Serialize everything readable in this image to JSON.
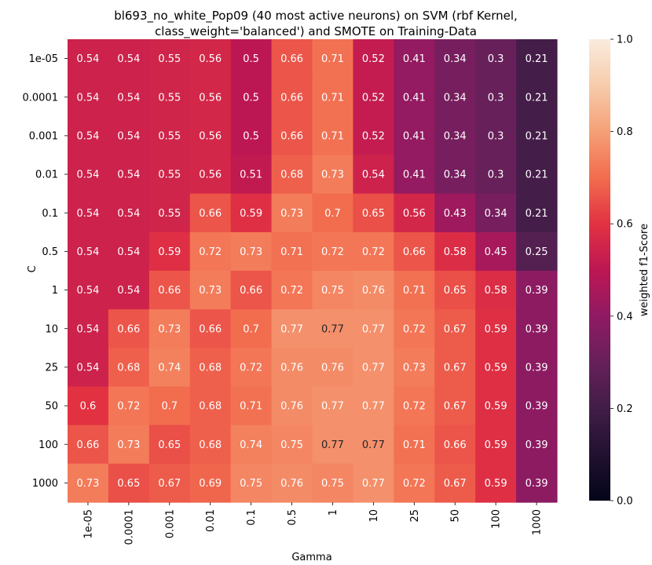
{
  "chart_data": {
    "type": "heatmap",
    "title_lines": [
      "bl693_no_white_Pop09 (40 most active neurons) on SVM (rbf Kernel,",
      "class_weight='balanced') and SMOTE on Training-Data"
    ],
    "xlabel": "Gamma",
    "ylabel": "C",
    "x_categories": [
      "1e-05",
      "0.0001",
      "0.001",
      "0.01",
      "0.1",
      "0.5",
      "1",
      "10",
      "25",
      "50",
      "100",
      "1000"
    ],
    "y_categories": [
      "1e-05",
      "0.0001",
      "0.001",
      "0.01",
      "0.1",
      "0.5",
      "1",
      "10",
      "25",
      "50",
      "100",
      "1000"
    ],
    "values": [
      [
        0.54,
        0.54,
        0.55,
        0.56,
        0.5,
        0.66,
        0.71,
        0.52,
        0.41,
        0.34,
        0.3,
        0.21
      ],
      [
        0.54,
        0.54,
        0.55,
        0.56,
        0.5,
        0.66,
        0.71,
        0.52,
        0.41,
        0.34,
        0.3,
        0.21
      ],
      [
        0.54,
        0.54,
        0.55,
        0.56,
        0.5,
        0.66,
        0.71,
        0.52,
        0.41,
        0.34,
        0.3,
        0.21
      ],
      [
        0.54,
        0.54,
        0.55,
        0.56,
        0.51,
        0.68,
        0.73,
        0.54,
        0.41,
        0.34,
        0.3,
        0.21
      ],
      [
        0.54,
        0.54,
        0.55,
        0.66,
        0.59,
        0.73,
        0.7,
        0.65,
        0.56,
        0.43,
        0.34,
        0.21
      ],
      [
        0.54,
        0.54,
        0.59,
        0.72,
        0.73,
        0.71,
        0.72,
        0.72,
        0.66,
        0.58,
        0.45,
        0.25
      ],
      [
        0.54,
        0.54,
        0.66,
        0.73,
        0.66,
        0.72,
        0.75,
        0.76,
        0.71,
        0.65,
        0.58,
        0.39
      ],
      [
        0.54,
        0.66,
        0.73,
        0.66,
        0.7,
        0.77,
        0.77,
        0.77,
        0.72,
        0.67,
        0.59,
        0.39
      ],
      [
        0.54,
        0.68,
        0.74,
        0.68,
        0.72,
        0.76,
        0.76,
        0.77,
        0.73,
        0.67,
        0.59,
        0.39
      ],
      [
        0.6,
        0.72,
        0.7,
        0.68,
        0.71,
        0.76,
        0.77,
        0.77,
        0.72,
        0.67,
        0.59,
        0.39
      ],
      [
        0.66,
        0.73,
        0.65,
        0.68,
        0.74,
        0.75,
        0.77,
        0.77,
        0.71,
        0.66,
        0.59,
        0.39
      ],
      [
        0.73,
        0.65,
        0.67,
        0.69,
        0.75,
        0.76,
        0.75,
        0.77,
        0.72,
        0.67,
        0.59,
        0.39
      ]
    ],
    "dark_text_cells": [
      [
        7,
        6
      ],
      [
        10,
        6
      ],
      [
        10,
        7
      ]
    ],
    "colorbar": {
      "label": "weighted f1-Score",
      "range": [
        0.0,
        1.0
      ],
      "ticks": [
        "0.0",
        "0.2",
        "0.4",
        "0.6",
        "0.8",
        "1.0"
      ],
      "colormap": "rocket"
    }
  }
}
